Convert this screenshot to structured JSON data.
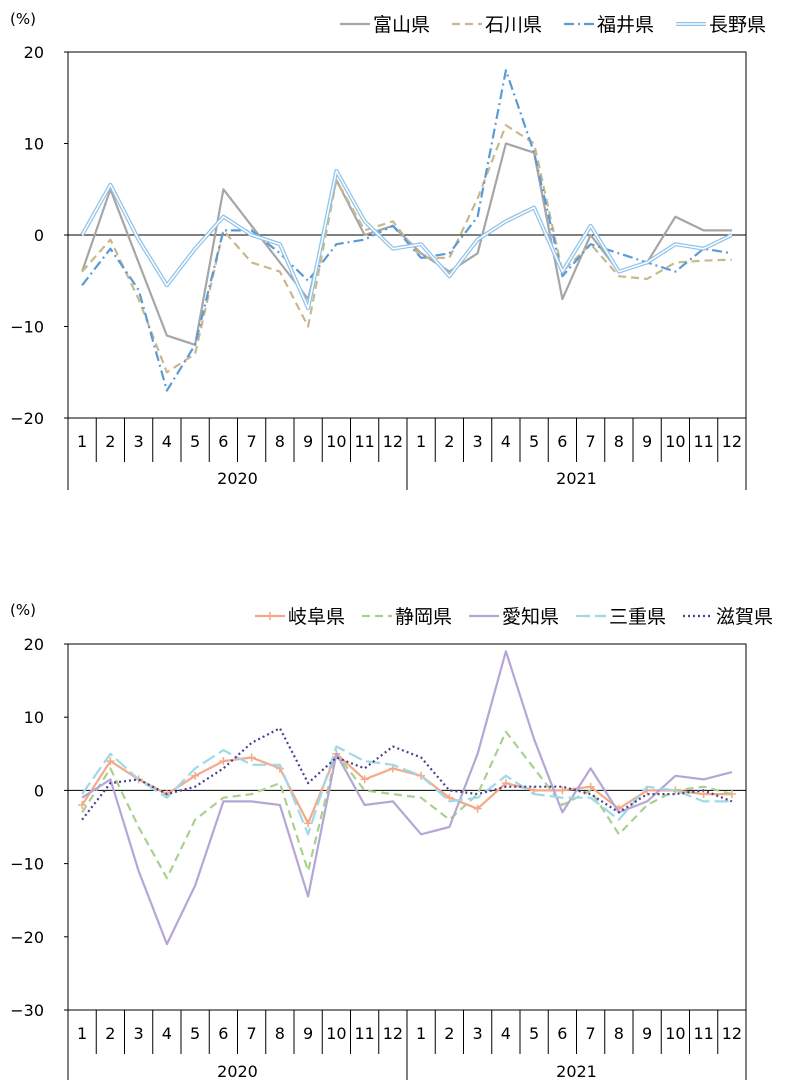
{
  "chart_data": [
    {
      "type": "line",
      "unit_label": "(%)",
      "ylim": [
        -20,
        20
      ],
      "yticks": [
        -20,
        -10,
        0,
        10,
        20
      ],
      "months": [
        "1",
        "2",
        "3",
        "4",
        "5",
        "6",
        "7",
        "8",
        "9",
        "10",
        "11",
        "12",
        "1",
        "2",
        "3",
        "4",
        "5",
        "6",
        "7",
        "8",
        "9",
        "10",
        "11",
        "12"
      ],
      "years": [
        "2020",
        "2021"
      ],
      "series": [
        {
          "name": "富山県",
          "color": "#a6a6a6",
          "style": "solid",
          "values": [
            -4,
            5,
            -3,
            -11,
            -12,
            5,
            1,
            -3,
            -7,
            6,
            0,
            1,
            -2,
            -4,
            -2,
            10,
            9,
            -7,
            0,
            -4,
            -3,
            2,
            0.5,
            0.5
          ]
        },
        {
          "name": "石川県",
          "color": "#c8b98c",
          "style": "dash",
          "values": [
            -4,
            -0.5,
            -7,
            -15,
            -13,
            0.5,
            -3,
            -4,
            -10,
            6,
            0.5,
            1.5,
            -2.5,
            -2.5,
            4,
            12,
            10,
            -4,
            -1,
            -4.5,
            -4.8,
            -3,
            -2.8,
            -2.7
          ]
        },
        {
          "name": "福井県",
          "color": "#5b9bd5",
          "style": "dashdot",
          "values": [
            -5.5,
            -1.5,
            -6,
            -17,
            -12,
            0.5,
            0.5,
            -2,
            -5,
            -1,
            -0.5,
            1,
            -2.5,
            -2,
            2,
            18,
            9,
            -4.5,
            -1,
            -2,
            -3,
            -4,
            -1.5,
            -2
          ]
        },
        {
          "name": "長野県",
          "color": "#8fc3ea",
          "style": "double",
          "values": [
            0,
            5.5,
            -0.5,
            -5.5,
            -1.5,
            2,
            0,
            -1,
            -8,
            7,
            1.5,
            -1.5,
            -1,
            -4.5,
            -0.5,
            1.5,
            3,
            -4,
            1,
            -4,
            -3,
            -1,
            -1.5,
            0
          ]
        }
      ]
    },
    {
      "type": "line",
      "unit_label": "(%)",
      "ylim": [
        -30,
        20
      ],
      "yticks": [
        -30,
        -20,
        -10,
        0,
        10,
        20
      ],
      "months": [
        "1",
        "2",
        "3",
        "4",
        "5",
        "6",
        "7",
        "8",
        "9",
        "10",
        "11",
        "12",
        "1",
        "2",
        "3",
        "4",
        "5",
        "6",
        "7",
        "8",
        "9",
        "10",
        "11",
        "12"
      ],
      "years": [
        "2020",
        "2021"
      ],
      "series": [
        {
          "name": "岐阜県",
          "color": "#f4a989",
          "style": "plus",
          "values": [
            -2,
            4,
            1.5,
            -0.5,
            2,
            4,
            4.5,
            3,
            -4.5,
            5,
            1.5,
            3,
            2,
            -1,
            -2.5,
            1,
            0,
            0,
            0.5,
            -2.5,
            0,
            0,
            -0.5,
            -0.5
          ]
        },
        {
          "name": "静岡県",
          "color": "#a9d18e",
          "style": "dash",
          "values": [
            -3,
            3,
            -5,
            -12,
            -4,
            -1,
            -0.5,
            1,
            -11,
            5,
            0,
            -0.5,
            -1,
            -4,
            -0.5,
            8,
            3,
            -2,
            0,
            -6,
            -2,
            0,
            0.5,
            -0.5
          ]
        },
        {
          "name": "愛知県",
          "color": "#b4a7d6",
          "style": "solid",
          "values": [
            -1,
            1.5,
            -11,
            -21,
            -13,
            -1.5,
            -1.5,
            -2,
            -14.5,
            5,
            -2,
            -1.5,
            -6,
            -5,
            5,
            19,
            7,
            -3,
            3,
            -3,
            -1.5,
            2,
            1.5,
            2.5
          ]
        },
        {
          "name": "三重県",
          "color": "#9fd8e8",
          "style": "longdash",
          "values": [
            -0.5,
            5,
            1.5,
            -1,
            3,
            5.5,
            3.5,
            3.5,
            -6,
            6,
            4,
            3.5,
            2,
            -1.5,
            -1,
            2,
            -0.5,
            -1,
            -1,
            -4,
            0.5,
            0,
            -1.5,
            -1.5
          ]
        },
        {
          "name": "滋賀県",
          "color": "#4b3f8f",
          "style": "dot",
          "values": [
            -4,
            1,
            1.5,
            -0.5,
            0.5,
            3,
            6.5,
            8.5,
            1,
            4.5,
            3,
            6,
            4.5,
            0,
            -0.5,
            0.5,
            0.5,
            0.5,
            -0.5,
            -3,
            -0.5,
            -0.5,
            0,
            -1.5
          ]
        }
      ]
    }
  ]
}
